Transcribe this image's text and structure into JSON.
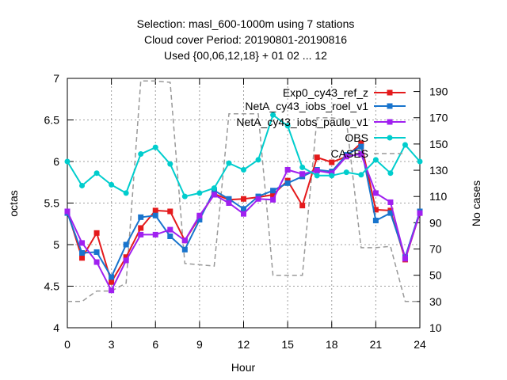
{
  "chart_data": {
    "type": "line",
    "title_lines": [
      "Selection: masl_600-1000m using     7 stations",
      "Cloud cover   Period: 20190801-20190816",
      "Used {00,06,12,18} + 01 02 ... 12"
    ],
    "xlabel": "Hour",
    "ylabel": "octas",
    "y2label": "No cases",
    "xlim": [
      0,
      24
    ],
    "ylim": [
      4,
      7
    ],
    "y2lim": [
      10,
      200
    ],
    "xticks": [
      0,
      3,
      6,
      9,
      12,
      15,
      18,
      21,
      24
    ],
    "yticks": [
      4,
      4.5,
      5,
      5.5,
      6,
      6.5,
      7
    ],
    "y2ticks": [
      10,
      30,
      50,
      70,
      90,
      110,
      130,
      150,
      170,
      190
    ],
    "grid": true,
    "legend_position": "top-right",
    "x": [
      0,
      1,
      2,
      3,
      4,
      5,
      6,
      7,
      8,
      9,
      10,
      11,
      12,
      13,
      14,
      15,
      16,
      17,
      18,
      19,
      20,
      21,
      22,
      23,
      24
    ],
    "series": [
      {
        "name": "Exp0_cy43_ref_z",
        "color": "#e41a1c",
        "axis": "y",
        "marker": "square",
        "values": [
          5.4,
          4.84,
          5.14,
          4.55,
          4.85,
          5.2,
          5.41,
          5.4,
          5.05,
          5.33,
          5.61,
          5.54,
          5.55,
          5.57,
          5.6,
          5.77,
          5.47,
          6.05,
          5.99,
          6.06,
          6.22,
          5.42,
          5.41,
          4.82,
          5.38
        ]
      },
      {
        "name": "NetA_cy43_iobs_roel_v1",
        "color": "#1874cd",
        "axis": "y",
        "marker": "square",
        "values": [
          5.38,
          4.9,
          4.91,
          4.61,
          5.0,
          5.33,
          5.35,
          5.1,
          4.94,
          5.3,
          5.65,
          5.55,
          5.43,
          5.58,
          5.65,
          5.74,
          5.82,
          5.9,
          5.88,
          6.08,
          6.18,
          5.29,
          5.38,
          4.85,
          5.4
        ]
      },
      {
        "name": "NetA_cy43_iobs_paulo_v1",
        "color": "#a020f0",
        "axis": "y",
        "marker": "square",
        "values": [
          5.4,
          5.02,
          4.79,
          4.45,
          4.81,
          5.12,
          5.12,
          5.18,
          5.05,
          5.35,
          5.6,
          5.5,
          5.37,
          5.55,
          5.54,
          5.9,
          5.85,
          5.89,
          5.86,
          6.06,
          6.09,
          5.62,
          5.51,
          4.83,
          5.38
        ]
      },
      {
        "name": "OBS",
        "color": "#00cdcd",
        "axis": "y",
        "marker": "circle",
        "values": [
          6.0,
          5.71,
          5.86,
          5.72,
          5.62,
          6.09,
          6.17,
          5.97,
          5.58,
          5.62,
          5.68,
          5.98,
          5.9,
          6.02,
          6.56,
          6.43,
          5.93,
          5.83,
          5.83,
          5.87,
          5.84,
          6.02,
          5.86,
          6.2,
          6.0
        ]
      },
      {
        "name": "CASES",
        "color": "#999999",
        "axis": "y2",
        "marker": "none",
        "dashed": true,
        "values": [
          30,
          30,
          38,
          38,
          44,
          198,
          198,
          197,
          59,
          58,
          57,
          173,
          173,
          173,
          50,
          50,
          50,
          170,
          170,
          168,
          71,
          71,
          72,
          30,
          30
        ]
      }
    ]
  }
}
